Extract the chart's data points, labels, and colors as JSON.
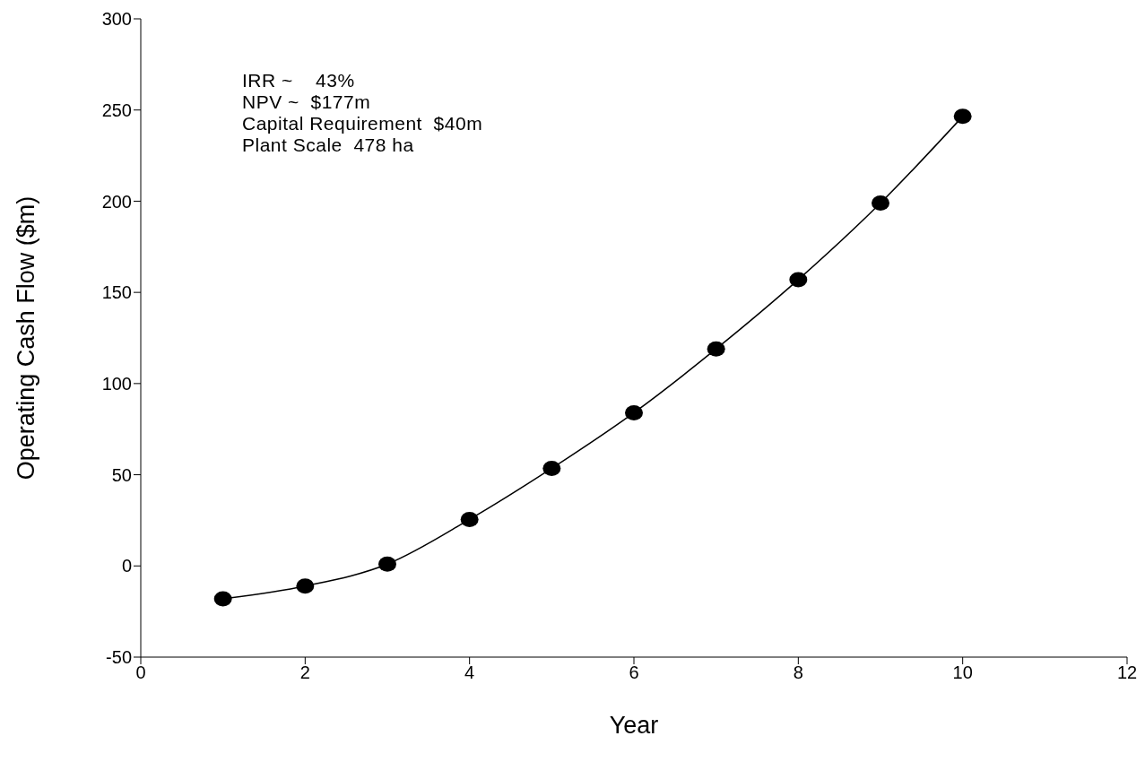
{
  "chart_data": {
    "type": "line",
    "xlabel": "Year",
    "ylabel": "Operating Cash Flow ($m)",
    "x": [
      1,
      2,
      3,
      4,
      5,
      6,
      7,
      8,
      9,
      10
    ],
    "series": [
      {
        "color": "#000000",
        "values": [
          -18,
          -11,
          1,
          25.5,
          53.5,
          84,
          119,
          157,
          199,
          246.5
        ]
      }
    ],
    "xlim": [
      0,
      12
    ],
    "xticks": [
      0,
      2,
      4,
      6,
      8,
      10,
      12
    ],
    "ylim": [
      -50,
      300
    ],
    "yticks": [
      -50,
      0,
      50,
      100,
      150,
      200,
      250,
      300
    ],
    "grid": false,
    "marker": "circle",
    "line_style": "solid",
    "annotations": [
      "IRR ~    43%",
      "NPV ~  $177m",
      "Capital Requirement  $40m",
      "Plant Scale  478 ha"
    ]
  }
}
